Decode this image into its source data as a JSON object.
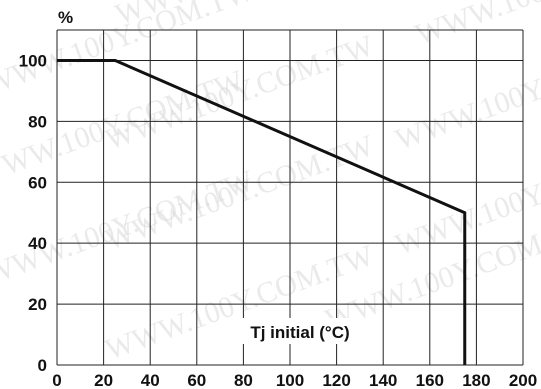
{
  "chart_data": {
    "type": "line",
    "y_unit": "%",
    "xlabel": "Tj initial (°C)",
    "xlim": [
      0,
      200
    ],
    "ylim": [
      0,
      110
    ],
    "x_ticks": [
      0,
      20,
      40,
      60,
      80,
      100,
      120,
      140,
      160,
      180,
      200
    ],
    "y_ticks": [
      0,
      20,
      40,
      60,
      80,
      100
    ],
    "grid": true,
    "series": [
      {
        "x": [
          0,
          25,
          175,
          175
        ],
        "y": [
          100,
          100,
          50,
          0
        ]
      }
    ]
  },
  "watermark": {
    "text": "WWW.100Y.COM.TW"
  },
  "colors": {
    "line": "#111111",
    "grid": "#222222",
    "watermark": "#d9d9d9"
  }
}
